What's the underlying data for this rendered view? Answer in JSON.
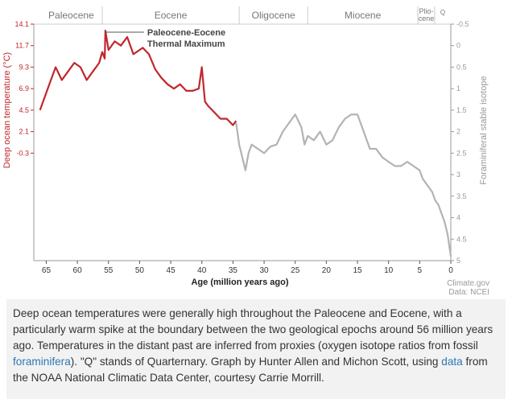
{
  "chart_data": {
    "type": "line",
    "title": "",
    "xlabel": "Age (million years ago)",
    "ylabel_left": "Deep ocean temperature (°C)",
    "ylabel_right": "Foraminiferal stable isotope",
    "xlim": [
      67,
      0
    ],
    "x_ticks": [
      "65",
      "60",
      "55",
      "50",
      "45",
      "40",
      "35",
      "30",
      "25",
      "20",
      "15",
      "10",
      "5",
      "0"
    ],
    "x_tick_values": [
      65,
      60,
      55,
      50,
      45,
      40,
      35,
      30,
      25,
      20,
      15,
      10,
      5,
      0
    ],
    "ylim_isotope": [
      5,
      -0.5
    ],
    "left_ticks": [
      {
        "label": "14.1",
        "iso": -0.5
      },
      {
        "label": "11.7",
        "iso": 0
      },
      {
        "label": "9.3",
        "iso": 0.5
      },
      {
        "label": "6.9",
        "iso": 1
      },
      {
        "label": "4.5",
        "iso": 1.5
      },
      {
        "label": "2.1",
        "iso": 2
      },
      {
        "label": "-0.3",
        "iso": 2.5
      }
    ],
    "right_ticks": [
      "-0.5",
      "0",
      "0.5",
      "1",
      "1.5",
      "2",
      "2.5",
      "3",
      "3.5",
      "4",
      "4.5",
      "5"
    ],
    "right_tick_values": [
      -0.5,
      0,
      0.5,
      1,
      1.5,
      2,
      2.5,
      3,
      3.5,
      4,
      4.5,
      5
    ],
    "epochs": [
      {
        "name": "Paleocene",
        "start": 66,
        "end": 56
      },
      {
        "name": "Eocene",
        "start": 56,
        "end": 34
      },
      {
        "name": "Oligocene",
        "start": 34,
        "end": 23
      },
      {
        "name": "Miocene",
        "start": 23,
        "end": 5.3
      },
      {
        "name": "Plio-",
        "name2": "cene",
        "start": 5.3,
        "end": 2.6
      },
      {
        "name": "Q",
        "start": 2.6,
        "end": 0
      }
    ],
    "annotation": {
      "line1": "Paleocene-Eocene",
      "line2": "Thermal Maximum",
      "x": 55.5,
      "iso": -0.35
    },
    "series": [
      {
        "name": "Deep ocean temperature (Paleocene–Eocene)",
        "color": "#c0272d",
        "x": [
          66,
          64.5,
          63.5,
          62.5,
          61.5,
          60.5,
          59.5,
          58.5,
          57.5,
          56.5,
          56,
          55.6,
          55.5,
          55,
          54,
          53,
          52,
          51,
          50,
          49.5,
          48.5,
          47.5,
          46.5,
          45.5,
          44.5,
          43.5,
          42.5,
          41.5,
          40.5,
          40,
          39.5,
          39,
          38,
          37,
          36,
          35,
          34.5
        ],
        "y": [
          1.5,
          0.9,
          0.5,
          0.8,
          0.6,
          0.4,
          0.5,
          0.8,
          0.6,
          0.4,
          0.15,
          0.3,
          -0.35,
          0.1,
          -0.1,
          0.0,
          -0.2,
          0.2,
          0.1,
          0.05,
          0.2,
          0.55,
          0.75,
          0.9,
          1.0,
          0.9,
          1.05,
          1.05,
          1.0,
          0.5,
          1.3,
          1.4,
          1.55,
          1.7,
          1.7,
          1.85,
          1.75
        ]
      },
      {
        "name": "Foraminiferal stable isotope (Oligocene–present)",
        "color": "#b3b3b3",
        "x": [
          34.5,
          34,
          33.5,
          33,
          32.5,
          32,
          31,
          30,
          29,
          28,
          27,
          26,
          25,
          24,
          23.5,
          23,
          22,
          21,
          20,
          19,
          18,
          17,
          16,
          15,
          14,
          13,
          12,
          11,
          10,
          9,
          8,
          7,
          6,
          5,
          4.5,
          4,
          3.5,
          3,
          2.5,
          2,
          1.5,
          1,
          0.5,
          0
        ],
        "y": [
          1.8,
          2.3,
          2.6,
          2.9,
          2.5,
          2.3,
          2.4,
          2.5,
          2.35,
          2.3,
          2.0,
          1.8,
          1.6,
          1.9,
          2.3,
          2.1,
          2.2,
          2.0,
          2.3,
          2.2,
          1.9,
          1.7,
          1.6,
          1.6,
          2.0,
          2.4,
          2.4,
          2.6,
          2.7,
          2.8,
          2.8,
          2.7,
          2.8,
          2.9,
          3.1,
          3.2,
          3.3,
          3.4,
          3.6,
          3.7,
          3.9,
          4.1,
          4.4,
          4.9
        ]
      }
    ],
    "source": "Climate.gov",
    "source2": "Data: NCEI"
  },
  "caption": {
    "p1": "Deep ocean temperatures were generally high throughout the Paleocene and Eocene, with a particularly warm spike at the boundary between the two geological epochs around 56 million years ago. Temperatures in the distant past are inferred from proxies (oxygen isotope ratios from fossil ",
    "link1": "foraminifera",
    "p2": "). \"Q\" stands of Quarternary. Graph by Hunter Allen and Michon Scott, using ",
    "link2": "data",
    "p3": " from the NOAA National Climatic Data Center, courtesy Carrie Morrill."
  }
}
